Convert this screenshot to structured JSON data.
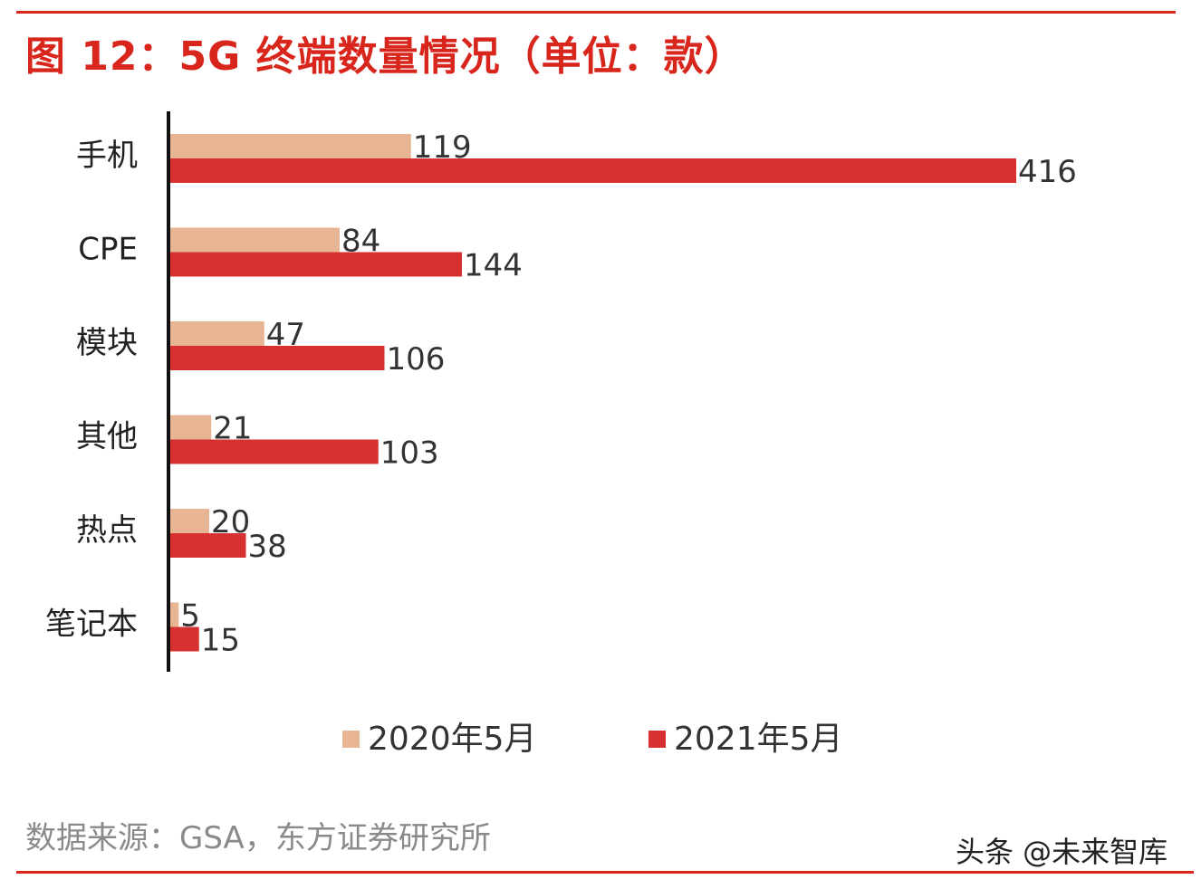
{
  "title": "图 12：5G 终端数量情况（单位：款）",
  "source": "数据来源：GSA，东方证券研究所",
  "watermark": "头条 @未来智库",
  "colors": {
    "accent": "#d9261c",
    "series_2020": "#e8b594",
    "series_2021": "#d63030"
  },
  "chart_data": {
    "type": "bar",
    "orientation": "horizontal",
    "categories": [
      "手机",
      "CPE",
      "模块",
      "其他",
      "热点",
      "笔记本"
    ],
    "series": [
      {
        "name": "2020年5月",
        "values": [
          119,
          84,
          47,
          21,
          20,
          5
        ]
      },
      {
        "name": "2021年5月",
        "values": [
          416,
          144,
          106,
          103,
          38,
          15
        ]
      }
    ],
    "xlim": [
      0,
      450
    ],
    "grid": false,
    "legend_position": "bottom"
  }
}
